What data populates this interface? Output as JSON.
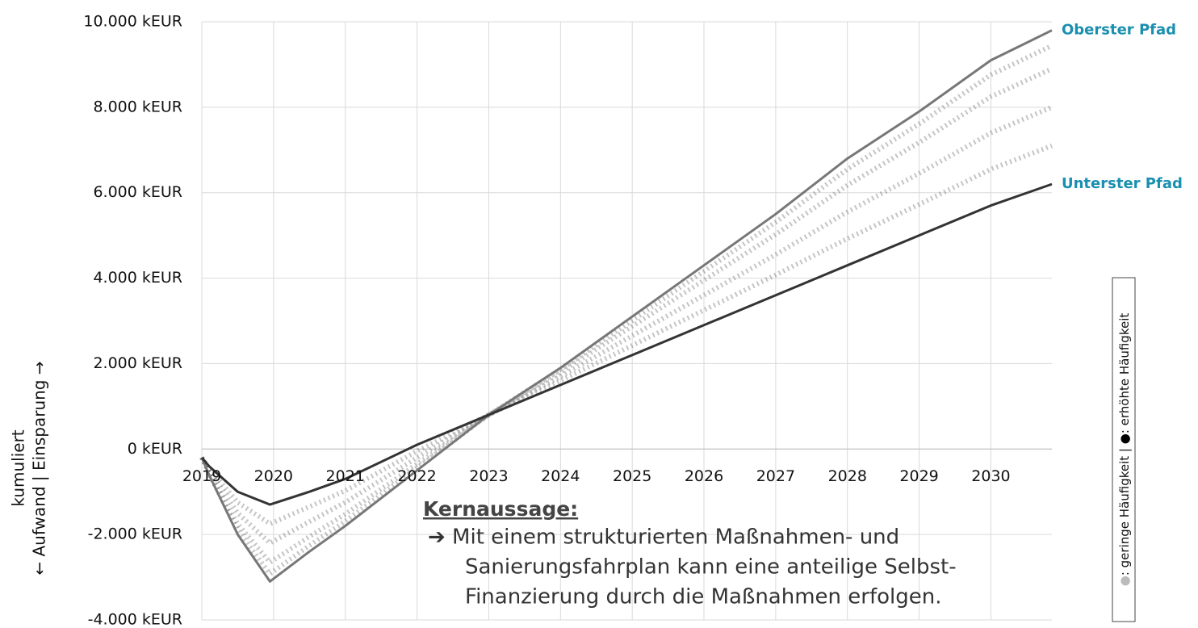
{
  "chart_data": {
    "type": "line",
    "x": [
      2019,
      2019.1,
      2019.5,
      2019.95,
      2020.5,
      2021,
      2022,
      2023,
      2024,
      2025,
      2026,
      2027,
      2028,
      2029,
      2030,
      2030.85
    ],
    "series": [
      {
        "color": "#555555",
        "values": [
          -200,
          -450,
          -1250,
          -1750,
          -1350,
          -975,
          -50,
          800,
          1600,
          2425,
          3250,
          4075,
          4925,
          5725,
          6550,
          7100
        ]
      },
      {
        "color": "#555555",
        "values": [
          -200,
          -500,
          -1500,
          -2200,
          -1700,
          -1250,
          -200,
          800,
          1700,
          2650,
          3600,
          4550,
          5550,
          6450,
          7400,
          8000
        ]
      },
      {
        "color": "#555555",
        "values": [
          -200,
          -550,
          -1750,
          -2650,
          -2050,
          -1525,
          -350,
          800,
          1800,
          2875,
          3950,
          5025,
          6175,
          7175,
          8250,
          8900
        ]
      },
      {
        "color": "#555555",
        "values": [
          -200,
          -580,
          -1900,
          -2920,
          -2260,
          -1690,
          -440,
          800,
          1860,
          3010,
          4160,
          5310,
          6550,
          7610,
          8760,
          9440
        ]
      },
      {
        "name": "Oberster Pfad",
        "color": "#777777",
        "values": [
          -200,
          -600,
          -2000,
          -3100,
          -2400,
          -1800,
          -500,
          800,
          1900,
          3100,
          4300,
          5500,
          6800,
          7900,
          9100,
          9800
        ]
      },
      {
        "name": "Unterster Pfad",
        "color": "#333333",
        "values": [
          -200,
          -400,
          -1000,
          -1300,
          -1000,
          -700,
          100,
          800,
          1500,
          2200,
          2900,
          3600,
          4300,
          5000,
          5700,
          6200
        ]
      }
    ],
    "name_color": "#1a8fb0",
    "xlim": [
      2019,
      2030.85
    ],
    "xticks": [
      2019,
      2020,
      2021,
      2022,
      2023,
      2024,
      2025,
      2026,
      2027,
      2028,
      2029,
      2030
    ],
    "ylim": [
      -4000,
      10000
    ],
    "yticks": [
      {
        "value": -4000,
        "label": "-4.000 kEUR"
      },
      {
        "value": -2000,
        "label": "-2.000 kEUR"
      },
      {
        "value": 0,
        "label": "0 kEUR"
      },
      {
        "value": 2000,
        "label": "2.000 kEUR"
      },
      {
        "value": 4000,
        "label": "4.000 kEUR"
      },
      {
        "value": 6000,
        "label": "6.000 kEUR"
      },
      {
        "value": 8000,
        "label": "8.000 kEUR"
      },
      {
        "value": 10000,
        "label": "10.000 kEUR"
      }
    ],
    "grid": true,
    "y_label": [
      "kumuliert",
      "← Aufwand | Einsparung →"
    ],
    "annotation": {
      "heading": "Kernaussage:",
      "lines": [
        "➔ Mit einem strukturierten Maßnahmen- und",
        "Sanierungsfahrplan kann eine anteilige Selbst-",
        "Finanzierung durch die Maßnahmen erfolgen."
      ]
    },
    "legend_note": [
      "●",
      ": geringe Häufigkeit | ",
      "●",
      ": erhöhte Häufigkeit"
    ]
  }
}
